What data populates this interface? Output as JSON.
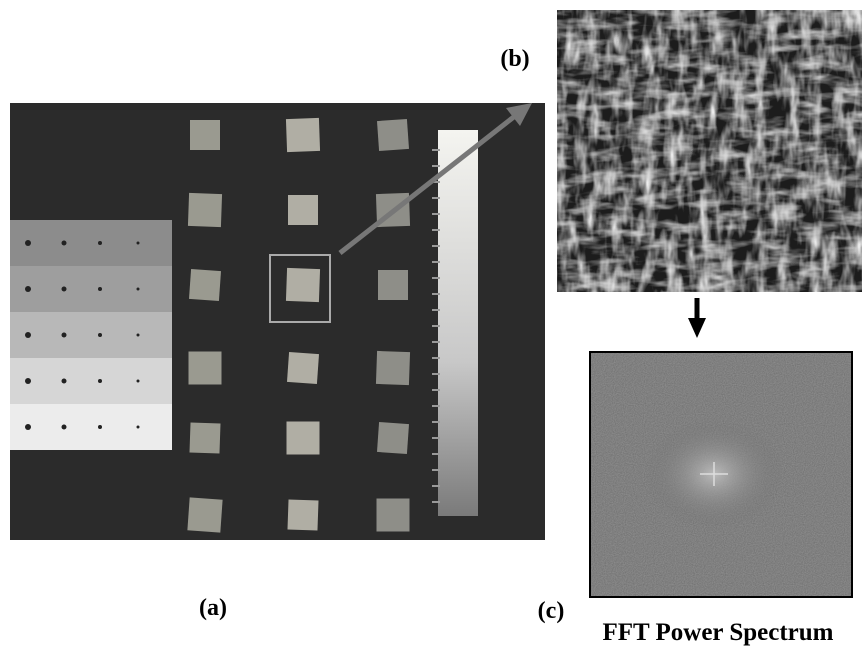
{
  "panels": {
    "a": {
      "label": "(a)"
    },
    "b": {
      "label": "(b)"
    },
    "c": {
      "label": "(c)",
      "caption": "FFT Power Spectrum"
    }
  }
}
